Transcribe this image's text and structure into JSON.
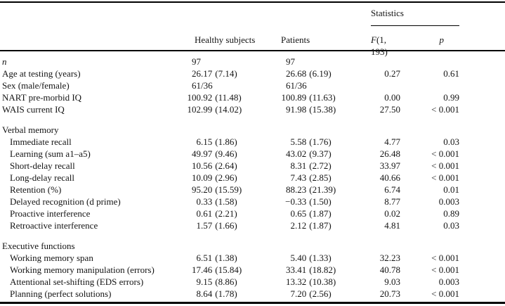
{
  "table": {
    "header": {
      "statistics_label": "Statistics",
      "col_healthy": "Healthy subjects",
      "col_patients": "Patients",
      "col_f_italic": "F",
      "col_f_rest": "(1, 193)",
      "col_p": "p"
    },
    "sections": [
      {
        "title": "",
        "rows": [
          {
            "label": "n",
            "italic": true,
            "indent": false,
            "healthy_mean": "97",
            "healthy_sd": "",
            "patients_mean": "97",
            "patients_sd": "",
            "f": "",
            "p": ""
          },
          {
            "label": "Age at testing (years)",
            "indent": false,
            "healthy_mean": "26.17",
            "healthy_sd": "(7.14)",
            "patients_mean": "26.68",
            "patients_sd": "(6.19)",
            "f": "0.27",
            "p": "0.61"
          },
          {
            "label": "Sex (male/female)",
            "indent": false,
            "healthy_mean": "61/36",
            "healthy_sd": "",
            "patients_mean": "61/36",
            "patients_sd": "",
            "f": "",
            "p": ""
          },
          {
            "label": "NART pre-morbid IQ",
            "indent": false,
            "healthy_mean": "100.92",
            "healthy_sd": "(11.48)",
            "patients_mean": "100.89",
            "patients_sd": "(11.63)",
            "f": "0.00",
            "p": "0.99"
          },
          {
            "label": "WAIS current IQ",
            "indent": false,
            "healthy_mean": "102.99",
            "healthy_sd": "(14.02)",
            "patients_mean": "91.98",
            "patients_sd": "(15.38)",
            "f": "27.50",
            "p": "< 0.001"
          }
        ]
      },
      {
        "title": "Verbal memory",
        "rows": [
          {
            "label": "Immediate recall",
            "indent": true,
            "healthy_mean": "6.15",
            "healthy_sd": "(1.86)",
            "patients_mean": "5.58",
            "patients_sd": "(1.76)",
            "f": "4.77",
            "p": "0.03"
          },
          {
            "label": "Learning (sum a1–a5)",
            "indent": true,
            "healthy_mean": "49.97",
            "healthy_sd": "(9.46)",
            "patients_mean": "43.02",
            "patients_sd": "(9.37)",
            "f": "26.48",
            "p": "< 0.001"
          },
          {
            "label": "Short-delay recall",
            "indent": true,
            "healthy_mean": "10.56",
            "healthy_sd": "(2.64)",
            "patients_mean": "8.31",
            "patients_sd": "(2.72)",
            "f": "33.97",
            "p": "< 0.001"
          },
          {
            "label": "Long-delay recall",
            "indent": true,
            "healthy_mean": "10.09",
            "healthy_sd": "(2.96)",
            "patients_mean": "7.43",
            "patients_sd": "(2.85)",
            "f": "40.66",
            "p": "< 0.001"
          },
          {
            "label": "Retention (%)",
            "indent": true,
            "healthy_mean": "95.20",
            "healthy_sd": "(15.59)",
            "patients_mean": "88.23",
            "patients_sd": "(21.39)",
            "f": "6.74",
            "p": "0.01"
          },
          {
            "label": "Delayed recognition (d prime)",
            "indent": true,
            "healthy_mean": "0.33",
            "healthy_sd": "(1.58)",
            "patients_mean": "−0.33",
            "patients_sd": "(1.50)",
            "f": "8.77",
            "p": "0.003"
          },
          {
            "label": "Proactive interference",
            "indent": true,
            "healthy_mean": "0.61",
            "healthy_sd": "(2.21)",
            "patients_mean": "0.65",
            "patients_sd": "(1.87)",
            "f": "0.02",
            "p": "0.89"
          },
          {
            "label": "Retroactive interference",
            "indent": true,
            "healthy_mean": "1.57",
            "healthy_sd": "(1.66)",
            "patients_mean": "2.12",
            "patients_sd": "(1.87)",
            "f": "4.81",
            "p": "0.03"
          }
        ]
      },
      {
        "title": "Executive functions",
        "rows": [
          {
            "label": "Working memory span",
            "indent": true,
            "healthy_mean": "6.51",
            "healthy_sd": "(1.38)",
            "patients_mean": "5.40",
            "patients_sd": "(1.33)",
            "f": "32.23",
            "p": "< 0.001"
          },
          {
            "label": "Working memory manipulation (errors)",
            "indent": true,
            "healthy_mean": "17.46",
            "healthy_sd": "(15.84)",
            "patients_mean": "33.41",
            "patients_sd": "(18.82)",
            "f": "40.78",
            "p": "< 0.001"
          },
          {
            "label": "Attentional set-shifting (EDS errors)",
            "indent": true,
            "healthy_mean": "9.15",
            "healthy_sd": "(8.86)",
            "patients_mean": "13.32",
            "patients_sd": "(10.38)",
            "f": "9.03",
            "p": "0.003"
          },
          {
            "label": "Planning (perfect solutions)",
            "indent": true,
            "healthy_mean": "8.64",
            "healthy_sd": "(1.78)",
            "patients_mean": "7.20",
            "patients_sd": "(2.56)",
            "f": "20.73",
            "p": "< 0.001"
          }
        ]
      }
    ]
  }
}
